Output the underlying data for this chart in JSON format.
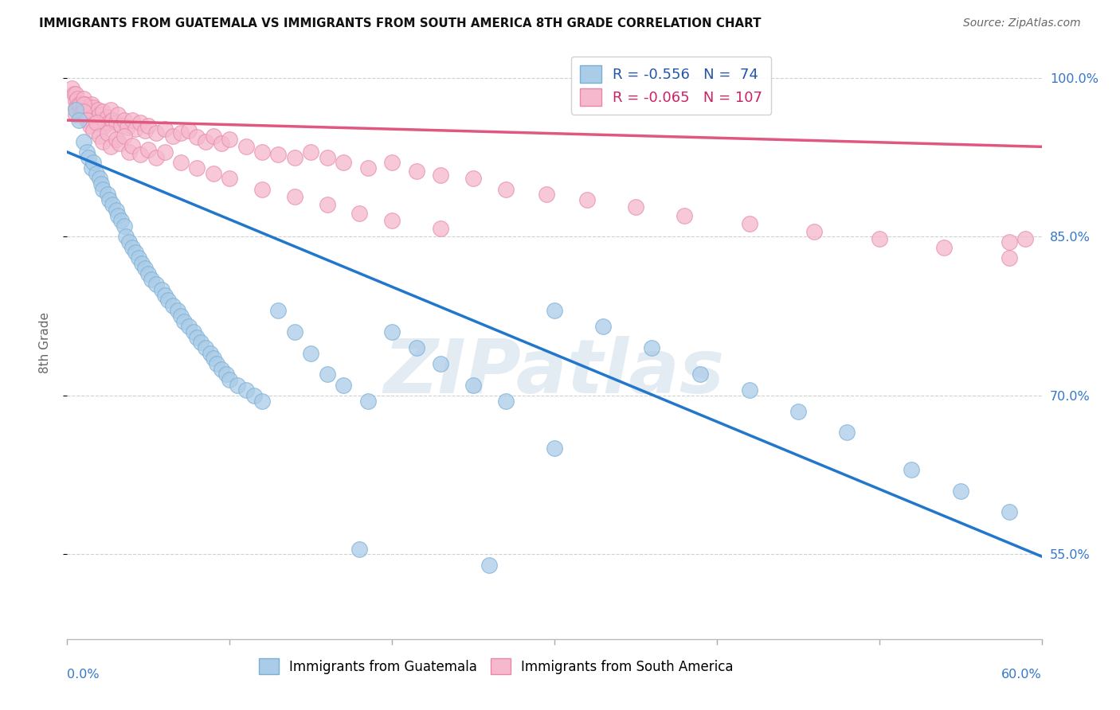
{
  "title": "IMMIGRANTS FROM GUATEMALA VS IMMIGRANTS FROM SOUTH AMERICA 8TH GRADE CORRELATION CHART",
  "source": "Source: ZipAtlas.com",
  "ylabel": "8th Grade",
  "xlim": [
    0.0,
    0.6
  ],
  "ylim": [
    0.47,
    1.03
  ],
  "y_ticks": [
    0.55,
    0.7,
    0.85,
    1.0
  ],
  "x_ticks": [
    0.0,
    0.1,
    0.2,
    0.3,
    0.4,
    0.5,
    0.6
  ],
  "blue_color": "#aacce8",
  "pink_color": "#f5b8cc",
  "blue_edge_color": "#7aafd4",
  "pink_edge_color": "#e888aa",
  "blue_line_color": "#2277cc",
  "pink_line_color": "#e05880",
  "blue_R": -0.556,
  "blue_N": 74,
  "pink_R": -0.065,
  "pink_N": 107,
  "watermark": "ZIPatlas",
  "legend_R_color_blue": "#2255aa",
  "legend_R_color_pink": "#cc2266",
  "blue_line_y0": 0.93,
  "blue_line_y1": 0.548,
  "pink_line_y0": 0.96,
  "pink_line_y1": 0.935,
  "blue_x": [
    0.005,
    0.007,
    0.01,
    0.012,
    0.013,
    0.015,
    0.016,
    0.018,
    0.02,
    0.021,
    0.022,
    0.025,
    0.026,
    0.028,
    0.03,
    0.031,
    0.033,
    0.035,
    0.036,
    0.038,
    0.04,
    0.042,
    0.044,
    0.046,
    0.048,
    0.05,
    0.052,
    0.055,
    0.058,
    0.06,
    0.062,
    0.065,
    0.068,
    0.07,
    0.072,
    0.075,
    0.078,
    0.08,
    0.082,
    0.085,
    0.088,
    0.09,
    0.092,
    0.095,
    0.098,
    0.1,
    0.105,
    0.11,
    0.115,
    0.12,
    0.13,
    0.14,
    0.15,
    0.16,
    0.17,
    0.185,
    0.2,
    0.215,
    0.23,
    0.25,
    0.27,
    0.3,
    0.33,
    0.36,
    0.39,
    0.42,
    0.45,
    0.48,
    0.52,
    0.55,
    0.58,
    0.3,
    0.18,
    0.26
  ],
  "blue_y": [
    0.97,
    0.96,
    0.94,
    0.93,
    0.925,
    0.915,
    0.92,
    0.91,
    0.905,
    0.9,
    0.895,
    0.89,
    0.885,
    0.88,
    0.875,
    0.87,
    0.865,
    0.86,
    0.85,
    0.845,
    0.84,
    0.835,
    0.83,
    0.825,
    0.82,
    0.815,
    0.81,
    0.805,
    0.8,
    0.795,
    0.79,
    0.785,
    0.78,
    0.775,
    0.77,
    0.765,
    0.76,
    0.755,
    0.75,
    0.745,
    0.74,
    0.735,
    0.73,
    0.725,
    0.72,
    0.715,
    0.71,
    0.705,
    0.7,
    0.695,
    0.78,
    0.76,
    0.74,
    0.72,
    0.71,
    0.695,
    0.76,
    0.745,
    0.73,
    0.71,
    0.695,
    0.78,
    0.765,
    0.745,
    0.72,
    0.705,
    0.685,
    0.665,
    0.63,
    0.61,
    0.59,
    0.65,
    0.555,
    0.54
  ],
  "pink_x": [
    0.003,
    0.004,
    0.005,
    0.005,
    0.005,
    0.005,
    0.006,
    0.007,
    0.008,
    0.008,
    0.009,
    0.01,
    0.01,
    0.01,
    0.011,
    0.012,
    0.012,
    0.013,
    0.013,
    0.014,
    0.015,
    0.015,
    0.016,
    0.017,
    0.018,
    0.019,
    0.02,
    0.021,
    0.022,
    0.023,
    0.025,
    0.026,
    0.027,
    0.028,
    0.03,
    0.031,
    0.033,
    0.035,
    0.037,
    0.04,
    0.042,
    0.045,
    0.048,
    0.05,
    0.055,
    0.06,
    0.065,
    0.07,
    0.075,
    0.08,
    0.085,
    0.09,
    0.095,
    0.1,
    0.11,
    0.12,
    0.13,
    0.14,
    0.15,
    0.16,
    0.17,
    0.185,
    0.2,
    0.215,
    0.23,
    0.25,
    0.27,
    0.295,
    0.32,
    0.35,
    0.38,
    0.42,
    0.46,
    0.5,
    0.54,
    0.58,
    0.59,
    0.01,
    0.01,
    0.012,
    0.014,
    0.016,
    0.018,
    0.02,
    0.022,
    0.025,
    0.027,
    0.03,
    0.032,
    0.035,
    0.038,
    0.04,
    0.045,
    0.05,
    0.055,
    0.06,
    0.07,
    0.08,
    0.09,
    0.1,
    0.12,
    0.14,
    0.16,
    0.18,
    0.2,
    0.23,
    0.58
  ],
  "pink_y": [
    0.99,
    0.985,
    0.985,
    0.978,
    0.972,
    0.965,
    0.98,
    0.975,
    0.97,
    0.975,
    0.968,
    0.98,
    0.972,
    0.965,
    0.975,
    0.97,
    0.963,
    0.972,
    0.965,
    0.968,
    0.975,
    0.968,
    0.972,
    0.965,
    0.96,
    0.97,
    0.965,
    0.96,
    0.968,
    0.955,
    0.963,
    0.958,
    0.97,
    0.96,
    0.958,
    0.965,
    0.955,
    0.96,
    0.953,
    0.96,
    0.952,
    0.958,
    0.95,
    0.955,
    0.948,
    0.952,
    0.945,
    0.948,
    0.95,
    0.944,
    0.94,
    0.945,
    0.938,
    0.942,
    0.935,
    0.93,
    0.928,
    0.925,
    0.93,
    0.925,
    0.92,
    0.915,
    0.92,
    0.912,
    0.908,
    0.905,
    0.895,
    0.89,
    0.885,
    0.878,
    0.87,
    0.862,
    0.855,
    0.848,
    0.84,
    0.83,
    0.848,
    0.975,
    0.968,
    0.96,
    0.955,
    0.95,
    0.958,
    0.945,
    0.94,
    0.948,
    0.935,
    0.942,
    0.938,
    0.945,
    0.93,
    0.936,
    0.928,
    0.932,
    0.925,
    0.93,
    0.92,
    0.915,
    0.91,
    0.905,
    0.895,
    0.888,
    0.88,
    0.872,
    0.865,
    0.858,
    0.845
  ]
}
